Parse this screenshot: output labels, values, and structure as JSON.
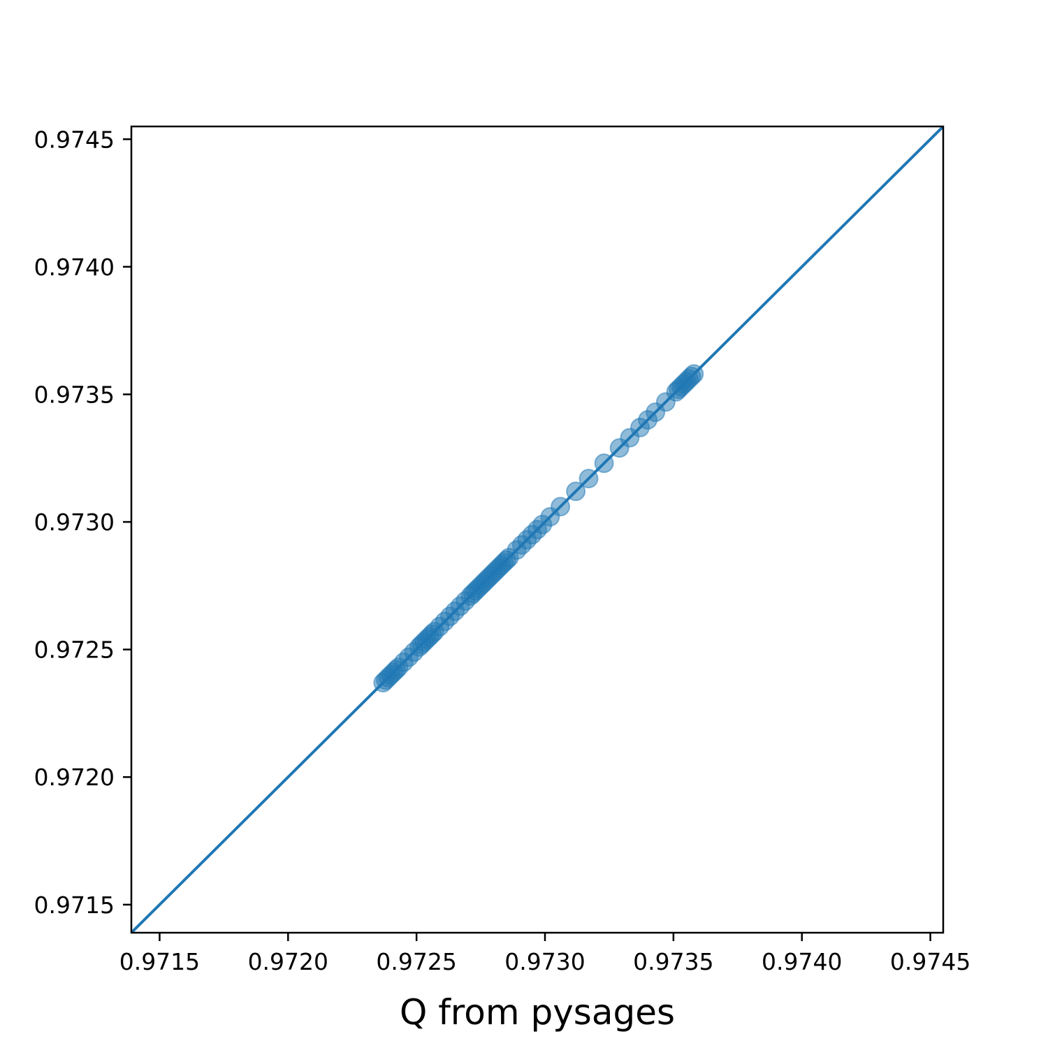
{
  "chart_data": {
    "type": "scatter",
    "xlabel": "Q from pysages",
    "ylabel": "",
    "xlim": [
      0.97139,
      0.97455
    ],
    "ylim": [
      0.97139,
      0.97455
    ],
    "x_ticks": [
      0.9715,
      0.972,
      0.9725,
      0.973,
      0.9735,
      0.974,
      0.9745
    ],
    "y_ticks": [
      0.9715,
      0.972,
      0.9725,
      0.973,
      0.9735,
      0.974,
      0.9745
    ],
    "x_tick_labels": [
      "0.9715",
      "0.9720",
      "0.9725",
      "0.9730",
      "0.9735",
      "0.9740",
      "0.9745"
    ],
    "y_tick_labels": [
      "0.9715",
      "0.9720",
      "0.9725",
      "0.9730",
      "0.9735",
      "0.9740",
      "0.9745"
    ],
    "grid": false,
    "reference_line": {
      "type": "y=x",
      "color": "#1f77b4"
    },
    "series": [
      {
        "color": "#1f77b4",
        "x": [
          0.97237,
          0.97238,
          0.97239,
          0.9724,
          0.97241,
          0.97242,
          0.97243,
          0.97245,
          0.97247,
          0.97249,
          0.97251,
          0.97252,
          0.97253,
          0.97254,
          0.97255,
          0.97256,
          0.97257,
          0.97259,
          0.97261,
          0.97263,
          0.97265,
          0.97267,
          0.97269,
          0.97271,
          0.97272,
          0.97273,
          0.97274,
          0.97275,
          0.97276,
          0.97277,
          0.97278,
          0.97279,
          0.9728,
          0.97281,
          0.97282,
          0.97283,
          0.97284,
          0.97285,
          0.97286,
          0.97289,
          0.97291,
          0.97293,
          0.97295,
          0.97297,
          0.97299,
          0.97302,
          0.97306,
          0.97312,
          0.97317,
          0.97323,
          0.97329,
          0.97333,
          0.97337,
          0.9734,
          0.97343,
          0.97347,
          0.97351,
          0.97352,
          0.97353,
          0.97354,
          0.97355,
          0.97356,
          0.97357,
          0.97358
        ],
        "y": [
          0.97237,
          0.97238,
          0.97239,
          0.9724,
          0.97241,
          0.97242,
          0.97243,
          0.97245,
          0.97247,
          0.97249,
          0.97251,
          0.97252,
          0.97253,
          0.97254,
          0.97255,
          0.97256,
          0.97257,
          0.97259,
          0.97261,
          0.97263,
          0.97265,
          0.97267,
          0.97269,
          0.97271,
          0.97272,
          0.97273,
          0.97274,
          0.97275,
          0.97276,
          0.97277,
          0.97278,
          0.97279,
          0.9728,
          0.97281,
          0.97282,
          0.97283,
          0.97284,
          0.97285,
          0.97286,
          0.97289,
          0.97291,
          0.97293,
          0.97295,
          0.97297,
          0.97299,
          0.97302,
          0.97306,
          0.97312,
          0.97317,
          0.97323,
          0.97329,
          0.97333,
          0.97337,
          0.9734,
          0.97343,
          0.97347,
          0.97351,
          0.97352,
          0.97353,
          0.97354,
          0.97355,
          0.97356,
          0.97357,
          0.97358
        ]
      }
    ]
  }
}
